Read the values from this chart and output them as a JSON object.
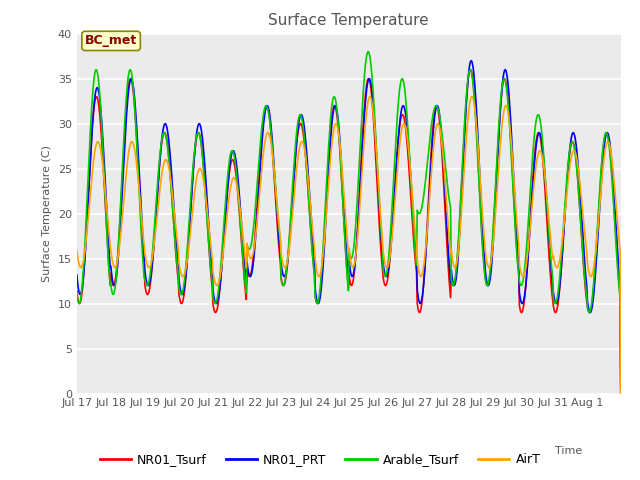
{
  "title": "Surface Temperature",
  "ylabel": "Surface Temperature (C)",
  "xlabel": "Time",
  "ylim": [
    0,
    40
  ],
  "yticks": [
    0,
    5,
    10,
    15,
    20,
    25,
    30,
    35,
    40
  ],
  "bg_color": "#ebebeb",
  "fig_color": "#ffffff",
  "annotation_text": "BC_met",
  "annotation_color": "#8B0000",
  "annotation_bg": "#ffffcc",
  "series": {
    "NR01_Tsurf": {
      "color": "#ff0000",
      "lw": 1.2
    },
    "NR01_PRT": {
      "color": "#0000ff",
      "lw": 1.2
    },
    "Arable_Tsurf": {
      "color": "#00cc00",
      "lw": 1.2
    },
    "AirT": {
      "color": "#ffa500",
      "lw": 1.2
    }
  },
  "x_tick_labels": [
    "Jul 17",
    "Jul 18",
    "Jul 19",
    "Jul 20",
    "Jul 21",
    "Jul 22",
    "Jul 23",
    "Jul 24",
    "Jul 25",
    "Jul 26",
    "Jul 27",
    "Jul 28",
    "Jul 29",
    "Jul 30",
    "Jul 31",
    "Aug 1"
  ],
  "n_days": 16,
  "pts_per_day": 48,
  "day_peaks_nr01": [
    33,
    35,
    29,
    29,
    26,
    32,
    30,
    32,
    35,
    31,
    32,
    36,
    35,
    29,
    28,
    29
  ],
  "day_troughs_nr01": [
    10,
    12,
    11,
    10,
    9,
    13,
    12,
    10,
    12,
    12,
    9,
    12,
    12,
    9,
    9,
    9
  ],
  "day_peaks_prt": [
    34,
    35,
    30,
    30,
    27,
    32,
    31,
    32,
    35,
    32,
    32,
    37,
    36,
    29,
    29,
    29
  ],
  "day_troughs_prt": [
    11,
    12,
    12,
    11,
    10,
    13,
    13,
    10,
    13,
    13,
    10,
    12,
    12,
    10,
    10,
    9
  ],
  "day_peaks_ar": [
    36,
    36,
    29,
    29,
    27,
    32,
    31,
    33,
    38,
    35,
    32,
    36,
    35,
    31,
    28,
    29
  ],
  "day_troughs_ar": [
    10,
    11,
    12,
    11,
    10,
    16,
    12,
    10,
    15,
    13,
    20,
    12,
    12,
    12,
    10,
    9
  ],
  "day_peaks_air": [
    28,
    28,
    26,
    25,
    24,
    29,
    28,
    30,
    33,
    30,
    30,
    33,
    32,
    27,
    27,
    28
  ],
  "day_troughs_air": [
    14,
    14,
    14,
    13,
    12,
    15,
    14,
    13,
    14,
    14,
    13,
    14,
    14,
    13,
    14,
    13
  ],
  "phase_nr01": 0.58,
  "phase_prt": 0.6,
  "phase_ar": 0.57,
  "phase_air": 0.62
}
